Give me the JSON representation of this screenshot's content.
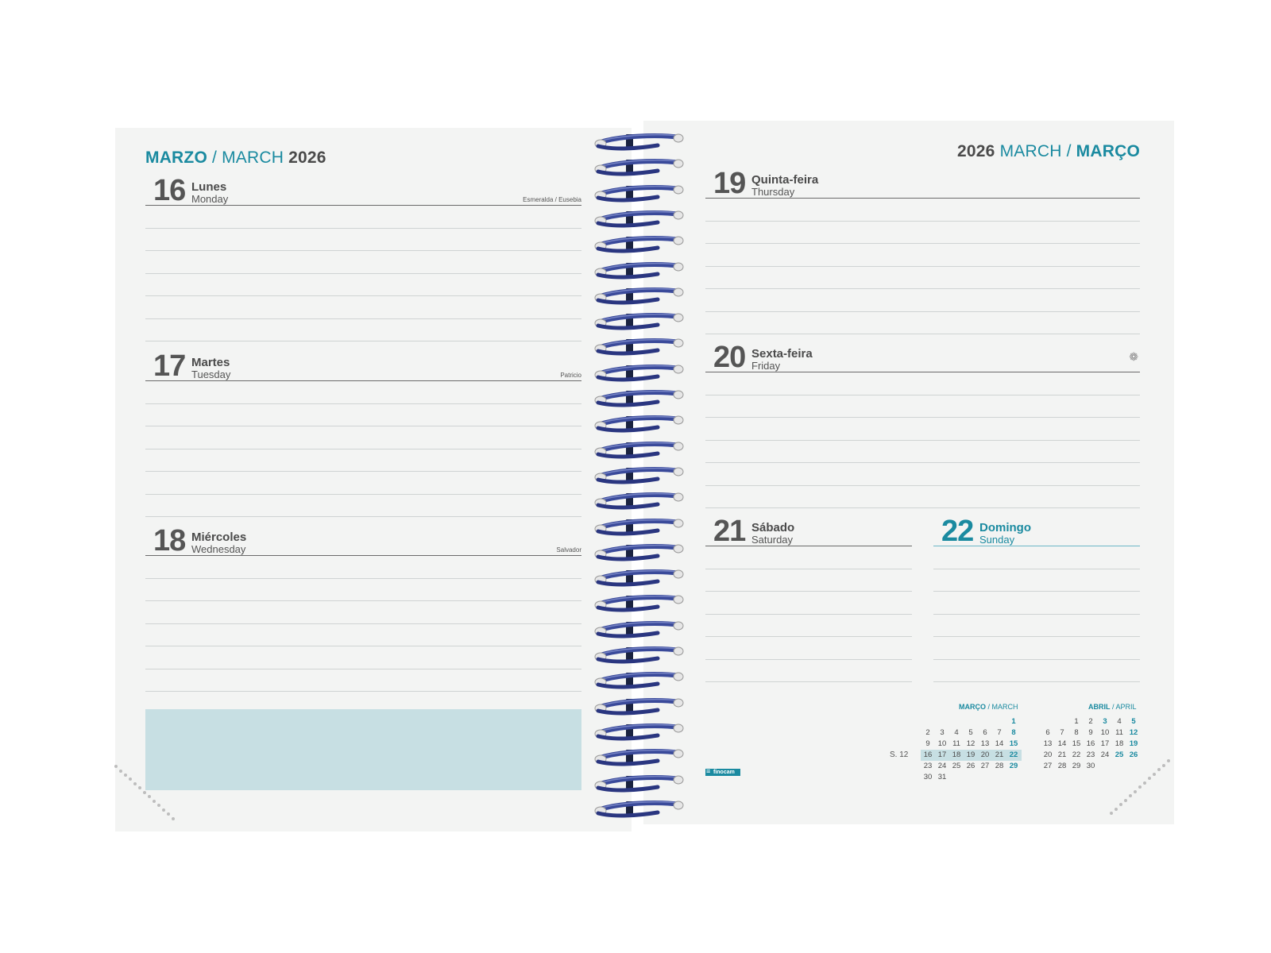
{
  "left_header": {
    "m1": "MARZO",
    "sep": " / ",
    "m2": "MARCH",
    "year": "2026"
  },
  "right_header": {
    "year": "2026",
    "m1": "MARCH",
    "sep": " / ",
    "m2": "MARÇO"
  },
  "days": {
    "d16": {
      "num": "16",
      "name": "Lunes",
      "en": "Monday",
      "saint": "Esmeralda / Eusebia"
    },
    "d17": {
      "num": "17",
      "name": "Martes",
      "en": "Tuesday",
      "saint": "Patricio"
    },
    "d18": {
      "num": "18",
      "name": "Miércoles",
      "en": "Wednesday",
      "saint": "Salvador"
    },
    "d19": {
      "num": "19",
      "name": "Quinta-feira",
      "en": "Thursday"
    },
    "d20": {
      "num": "20",
      "name": "Sexta-feira",
      "en": "Friday"
    },
    "d21": {
      "num": "21",
      "name": "Sábado",
      "en": "Saturday"
    },
    "d22": {
      "num": "22",
      "name": "Domingo",
      "en": "Sunday"
    }
  },
  "icons": {
    "spring": "flower-icon"
  },
  "mini_march": {
    "title_a": "MARÇO",
    "title_b": " / MARCH",
    "week_label": "S. 12",
    "rows": [
      [
        "",
        "",
        "",
        "",
        "",
        "",
        "1"
      ],
      [
        "2",
        "3",
        "4",
        "5",
        "6",
        "7",
        "8"
      ],
      [
        "9",
        "10",
        "11",
        "12",
        "13",
        "14",
        "15"
      ],
      [
        "16",
        "17",
        "18",
        "19",
        "20",
        "21",
        "22"
      ],
      [
        "23",
        "24",
        "25",
        "26",
        "27",
        "28",
        "29"
      ],
      [
        "30",
        "31",
        "",
        "",
        "",
        "",
        ""
      ]
    ]
  },
  "mini_april": {
    "title_a": "ABRIL",
    "title_b": " / APRIL",
    "rows": [
      [
        "",
        "",
        "1",
        "2",
        "3",
        "4",
        "5"
      ],
      [
        "6",
        "7",
        "8",
        "9",
        "10",
        "11",
        "12"
      ],
      [
        "13",
        "14",
        "15",
        "16",
        "17",
        "18",
        "19"
      ],
      [
        "20",
        "21",
        "22",
        "23",
        "24",
        "25",
        "26"
      ],
      [
        "27",
        "28",
        "29",
        "30",
        "",
        "",
        ""
      ]
    ],
    "bold_days": [
      "3",
      "5",
      "12",
      "19",
      "25",
      "26"
    ]
  },
  "brand": "finocam",
  "colors": {
    "accent": "#1a8aa0",
    "highlight": "#c7dfe3",
    "page": "#f3f4f3",
    "spiral": "#3a4a9a"
  }
}
